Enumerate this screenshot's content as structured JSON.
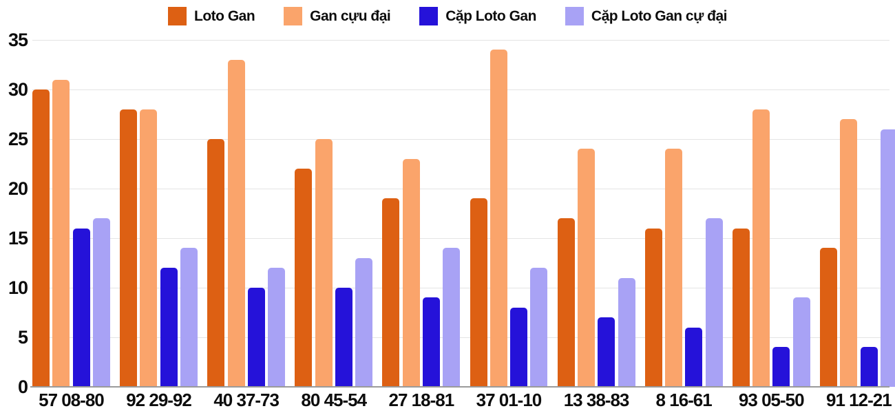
{
  "chart_data": {
    "type": "bar",
    "title": "",
    "xlabel": "",
    "ylabel": "",
    "ylim": [
      0,
      35
    ],
    "yticks": [
      0,
      5,
      10,
      15,
      20,
      25,
      30,
      35
    ],
    "grid": true,
    "legend_position": "top",
    "background": "#ffffff",
    "gridline_color": "#e4e4e4",
    "baseline_color": "#9a9a9a",
    "text_color": "#0d0d0d",
    "categories": [
      "57 08-80",
      "92 29-92",
      "40 37-73",
      "80 45-54",
      "27 18-81",
      "37 01-10",
      "13 38-83",
      "8 16-61",
      "93 05-50",
      "91 12-21"
    ],
    "series": [
      {
        "name": "Loto Gan",
        "color": "#dd6013",
        "values": [
          30,
          28,
          25,
          22,
          19,
          19,
          17,
          16,
          16,
          14
        ]
      },
      {
        "name": "Gan cựu đại",
        "color": "#faa46b",
        "values": [
          31,
          28,
          33,
          25,
          23,
          34,
          24,
          24,
          28,
          27
        ]
      },
      {
        "name": "Cặp Loto Gan",
        "color": "#2512d9",
        "values": [
          16,
          12,
          10,
          10,
          9,
          8,
          7,
          6,
          4,
          4
        ]
      },
      {
        "name": "Cặp Loto Gan cự đại",
        "color": "#a8a2f5",
        "values": [
          17,
          14,
          12,
          13,
          14,
          12,
          11,
          17,
          9,
          26
        ]
      }
    ]
  }
}
